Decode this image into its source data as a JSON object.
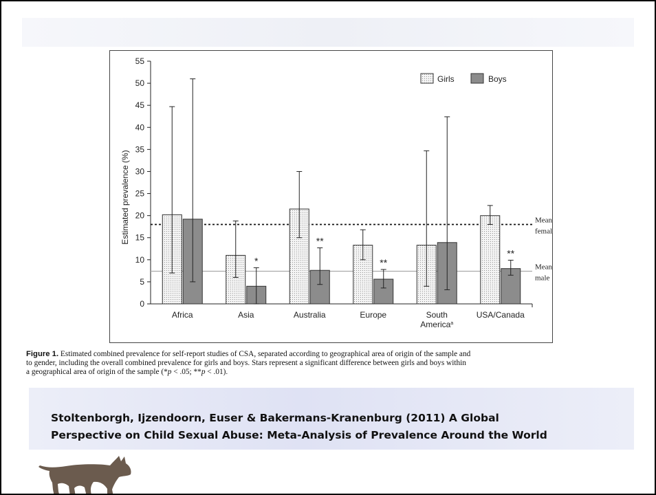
{
  "chart_data": {
    "type": "bar",
    "categories": [
      "Africa",
      "Asia",
      "Australia",
      "Europe",
      "South America",
      "USA/Canada"
    ],
    "category_superscripts": [
      "",
      "",
      "",
      "",
      "a",
      ""
    ],
    "ylabel": "Estimated prevalence (%)",
    "xlabel": "",
    "ylim": [
      0,
      55
    ],
    "yticks": [
      0,
      5,
      10,
      15,
      20,
      25,
      30,
      35,
      40,
      45,
      50,
      55
    ],
    "grid": false,
    "legend_position": "top-right",
    "series": [
      {
        "name": "Girls",
        "fill": "dotted",
        "color": "#e8e8e8",
        "values": [
          20.2,
          11.0,
          21.5,
          13.3,
          13.3,
          20.0
        ],
        "error_low": [
          7.0,
          6.0,
          15.0,
          10.0,
          4.0,
          18.0
        ],
        "error_high": [
          44.7,
          18.8,
          30.0,
          16.8,
          34.7,
          22.3
        ]
      },
      {
        "name": "Boys",
        "fill": "solid",
        "color": "#8c8c8c",
        "values": [
          19.2,
          4.0,
          7.6,
          5.6,
          13.9,
          8.0
        ],
        "error_low": [
          5.0,
          0.0,
          4.4,
          3.6,
          3.2,
          6.5
        ],
        "error_high": [
          51.0,
          8.2,
          12.7,
          7.8,
          42.4,
          9.9
        ]
      }
    ],
    "significance": [
      "",
      "*",
      "**",
      "**",
      "",
      "**"
    ],
    "reference_lines": [
      {
        "label_line1": "Mean",
        "label_line2": "female",
        "value": 18.0,
        "style": "dotted"
      },
      {
        "label_line1": "Mean",
        "label_line2": "male",
        "value": 7.4,
        "style": "solid"
      }
    ]
  },
  "caption": {
    "label": "Figure 1.",
    "line1": "Estimated combined prevalence for self-report studies of CSA, separated according to geographical area of origin of the sample and",
    "line2": "to gender, including the overall combined prevalence for girls and boys. Stars represent a significant difference between girls and boys within",
    "line3_pre": "a geographical area of origin of the sample (*",
    "p1": "p",
    "line3_mid": " < .05; **",
    "p2": "p",
    "line3_post": " < .01)."
  },
  "citation": {
    "line1": "Stoltenborgh, Ijzendoorn, Euser  & Bakermans-Kranenburg (2011) A Global",
    "line2": "Perspective on Child Sexual Abuse: Meta-Analysis of Prevalence Around the World"
  },
  "colors": {
    "axis": "#222222",
    "girls_fill": "#e8e8e8",
    "boys_fill": "#8c8c8c",
    "mean_male_line": "#aaaaaa",
    "cat_logo": "#6b5b4e"
  },
  "icons": {
    "logo": "cat-silhouette-icon"
  }
}
